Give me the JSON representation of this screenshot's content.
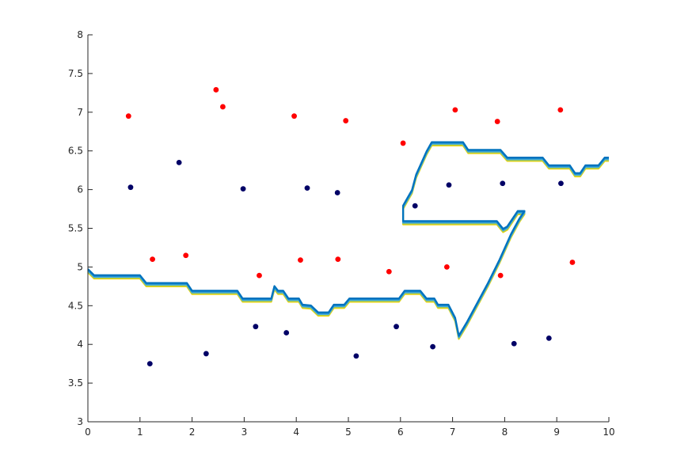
{
  "chart_data": {
    "type": "scatter",
    "title": "",
    "xlabel": "",
    "ylabel": "",
    "xlim": [
      0,
      10
    ],
    "ylim": [
      3,
      8
    ],
    "grid": false,
    "x_ticks": [
      "0",
      "1",
      "2",
      "3",
      "4",
      "5",
      "6",
      "7",
      "8",
      "9",
      "10"
    ],
    "y_ticks": [
      "3",
      "3.5",
      "4",
      "4.5",
      "5",
      "5.5",
      "6",
      "6.5",
      "7",
      "7.5",
      "8"
    ],
    "colors": {
      "red_points": "#ff0000",
      "blue_points": "#000066",
      "boundary": [
        "#0072bd",
        "#1f8fd0",
        "#4fb0d8",
        "#a6c94a",
        "#f2d60a"
      ]
    },
    "series": [
      {
        "points": [
          [
            0.78,
            6.95
          ],
          [
            2.46,
            7.29
          ],
          [
            2.59,
            7.07
          ],
          [
            3.96,
            6.95
          ],
          [
            4.95,
            6.89
          ],
          [
            6.05,
            6.6
          ],
          [
            7.05,
            7.03
          ],
          [
            7.86,
            6.88
          ],
          [
            9.07,
            7.03
          ],
          [
            1.24,
            5.1
          ],
          [
            1.88,
            5.15
          ],
          [
            4.08,
            5.09
          ],
          [
            4.8,
            5.1
          ],
          [
            3.29,
            4.89
          ],
          [
            5.78,
            4.94
          ],
          [
            6.89,
            5.0
          ],
          [
            7.92,
            4.89
          ],
          [
            9.3,
            5.06
          ]
        ]
      },
      {
        "points": [
          [
            0.82,
            6.03
          ],
          [
            1.75,
            6.35
          ],
          [
            2.98,
            6.01
          ],
          [
            4.21,
            6.02
          ],
          [
            4.79,
            5.96
          ],
          [
            6.28,
            5.79
          ],
          [
            6.93,
            6.06
          ],
          [
            7.96,
            6.08
          ],
          [
            9.08,
            6.08
          ],
          [
            1.19,
            3.75
          ],
          [
            2.27,
            3.88
          ],
          [
            3.22,
            4.23
          ],
          [
            3.81,
            4.15
          ],
          [
            5.15,
            3.85
          ],
          [
            5.92,
            4.23
          ],
          [
            6.62,
            3.97
          ],
          [
            8.18,
            4.01
          ],
          [
            8.85,
            4.08
          ]
        ]
      }
    ],
    "boundary": [
      [
        0.0,
        4.93
      ],
      [
        0.12,
        4.85
      ],
      [
        1.0,
        4.85
      ],
      [
        1.12,
        4.75
      ],
      [
        1.9,
        4.75
      ],
      [
        2.0,
        4.65
      ],
      [
        2.87,
        4.65
      ],
      [
        2.97,
        4.55
      ],
      [
        3.52,
        4.55
      ],
      [
        3.58,
        4.71
      ],
      [
        3.65,
        4.65
      ],
      [
        3.75,
        4.65
      ],
      [
        3.85,
        4.55
      ],
      [
        4.05,
        4.55
      ],
      [
        4.12,
        4.47
      ],
      [
        4.28,
        4.46
      ],
      [
        4.42,
        4.37
      ],
      [
        4.62,
        4.37
      ],
      [
        4.72,
        4.47
      ],
      [
        4.92,
        4.47
      ],
      [
        5.02,
        4.55
      ],
      [
        5.97,
        4.55
      ],
      [
        6.08,
        4.65
      ],
      [
        6.38,
        4.65
      ],
      [
        6.5,
        4.55
      ],
      [
        6.65,
        4.55
      ],
      [
        6.72,
        4.47
      ],
      [
        6.92,
        4.47
      ],
      [
        7.05,
        4.3
      ],
      [
        7.12,
        4.07
      ],
      [
        7.28,
        4.25
      ],
      [
        7.68,
        4.75
      ],
      [
        7.9,
        5.05
      ],
      [
        8.12,
        5.38
      ],
      [
        8.28,
        5.58
      ],
      [
        8.38,
        5.68
      ],
      [
        8.25,
        5.68
      ],
      [
        8.05,
        5.48
      ],
      [
        7.97,
        5.45
      ],
      [
        7.85,
        5.55
      ],
      [
        6.05,
        5.55
      ],
      [
        6.05,
        5.75
      ],
      [
        6.22,
        5.95
      ],
      [
        6.3,
        6.15
      ],
      [
        6.5,
        6.45
      ],
      [
        6.6,
        6.57
      ],
      [
        7.2,
        6.57
      ],
      [
        7.3,
        6.47
      ],
      [
        7.92,
        6.47
      ],
      [
        8.05,
        6.37
      ],
      [
        8.73,
        6.37
      ],
      [
        8.85,
        6.27
      ],
      [
        9.25,
        6.27
      ],
      [
        9.35,
        6.17
      ],
      [
        9.45,
        6.17
      ],
      [
        9.55,
        6.27
      ],
      [
        9.8,
        6.27
      ],
      [
        9.92,
        6.37
      ],
      [
        10.0,
        6.37
      ]
    ]
  }
}
